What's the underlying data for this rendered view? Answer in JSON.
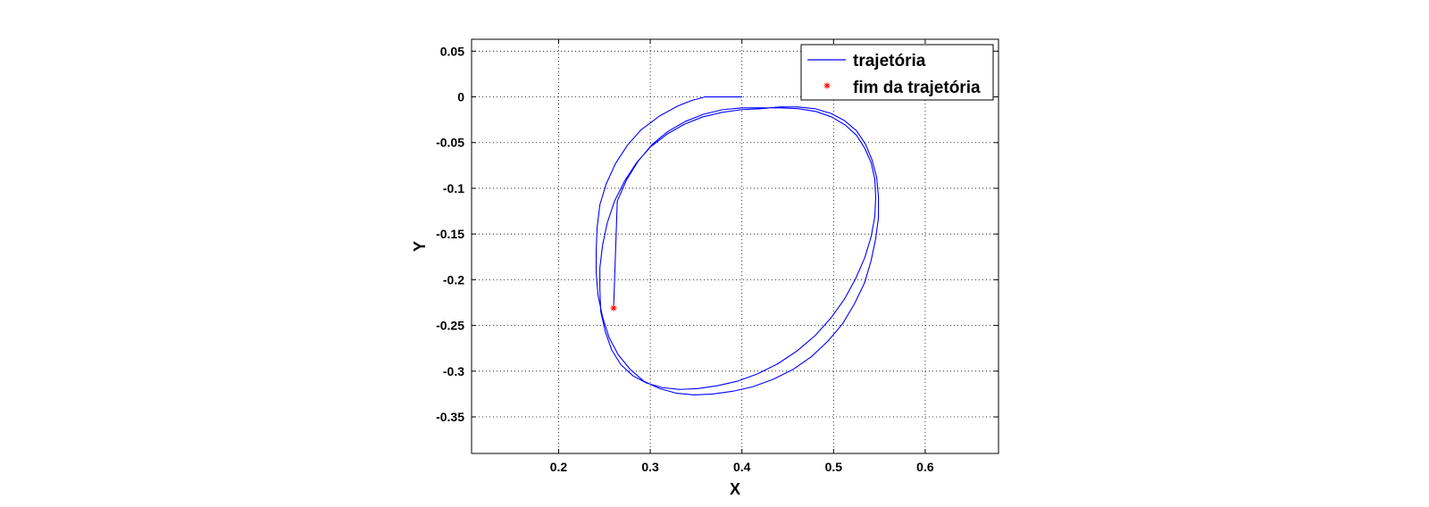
{
  "chart_data": {
    "type": "line",
    "title": "",
    "xlabel": "X",
    "ylabel": "Y",
    "xlim": [
      0.105,
      0.68
    ],
    "ylim": [
      -0.39,
      0.063
    ],
    "xticks": [
      0.2,
      0.3,
      0.4,
      0.5,
      0.6
    ],
    "xtick_labels": [
      "0.2",
      "0.3",
      "0.4",
      "0.5",
      "0.6"
    ],
    "yticks": [
      0.05,
      0,
      -0.05,
      -0.1,
      -0.15,
      -0.2,
      -0.25,
      -0.3,
      -0.35
    ],
    "ytick_labels": [
      "0.05",
      "0",
      "-0.05",
      "-0.1",
      "-0.15",
      "-0.2",
      "-0.25",
      "-0.3",
      "-0.35"
    ],
    "grid": true,
    "legend_position": "top-right",
    "series": [
      {
        "name": "trajetória",
        "color": "#0000ff",
        "style": "line",
        "x": [
          0.4,
          0.39,
          0.376,
          0.36,
          0.345,
          0.33,
          0.31,
          0.29,
          0.275,
          0.262,
          0.252,
          0.245,
          0.242,
          0.241,
          0.241,
          0.243,
          0.248,
          0.255,
          0.265,
          0.278,
          0.293,
          0.31,
          0.328,
          0.348,
          0.368,
          0.39,
          0.412,
          0.434,
          0.456,
          0.476,
          0.494,
          0.51,
          0.523,
          0.534,
          0.541,
          0.546,
          0.549,
          0.549,
          0.547,
          0.542,
          0.535,
          0.525,
          0.512,
          0.497,
          0.48,
          0.461,
          0.441,
          0.42,
          0.399,
          0.378,
          0.357,
          0.337,
          0.318,
          0.3,
          0.285,
          0.272,
          0.261,
          0.253,
          0.248,
          0.245,
          0.245,
          0.246,
          0.251,
          0.258,
          0.268,
          0.281,
          0.296,
          0.313,
          0.332,
          0.352,
          0.373,
          0.395,
          0.417,
          0.439,
          0.46,
          0.48,
          0.497,
          0.512,
          0.524,
          0.534,
          0.541,
          0.545,
          0.546,
          0.545,
          0.541,
          0.534,
          0.525,
          0.513,
          0.498,
          0.481,
          0.462,
          0.442,
          0.421,
          0.4,
          0.379,
          0.358,
          0.338,
          0.319,
          0.302,
          0.287,
          0.274,
          0.264,
          0.26
        ],
        "y": [
          0.0,
          0.0,
          0.0,
          0.0,
          -0.004,
          -0.01,
          -0.021,
          -0.036,
          -0.053,
          -0.073,
          -0.095,
          -0.118,
          -0.143,
          -0.168,
          -0.193,
          -0.217,
          -0.241,
          -0.263,
          -0.282,
          -0.298,
          -0.311,
          -0.319,
          -0.324,
          -0.326,
          -0.325,
          -0.322,
          -0.317,
          -0.309,
          -0.298,
          -0.284,
          -0.267,
          -0.248,
          -0.226,
          -0.203,
          -0.179,
          -0.155,
          -0.132,
          -0.109,
          -0.088,
          -0.069,
          -0.052,
          -0.037,
          -0.026,
          -0.018,
          -0.013,
          -0.011,
          -0.011,
          -0.013,
          -0.014,
          -0.017,
          -0.022,
          -0.03,
          -0.041,
          -0.055,
          -0.072,
          -0.092,
          -0.114,
          -0.138,
          -0.162,
          -0.187,
          -0.211,
          -0.235,
          -0.257,
          -0.277,
          -0.293,
          -0.305,
          -0.313,
          -0.318,
          -0.32,
          -0.319,
          -0.316,
          -0.311,
          -0.303,
          -0.292,
          -0.278,
          -0.261,
          -0.242,
          -0.221,
          -0.199,
          -0.176,
          -0.153,
          -0.131,
          -0.11,
          -0.09,
          -0.072,
          -0.056,
          -0.042,
          -0.031,
          -0.022,
          -0.016,
          -0.013,
          -0.012,
          -0.012,
          -0.012,
          -0.014,
          -0.019,
          -0.027,
          -0.038,
          -0.052,
          -0.07,
          -0.091,
          -0.114,
          -0.231
        ]
      },
      {
        "name": "fim da trajetória",
        "color": "#ff0000",
        "style": "marker",
        "marker": "*",
        "x": [
          0.26
        ],
        "y": [
          -0.231
        ]
      }
    ]
  }
}
